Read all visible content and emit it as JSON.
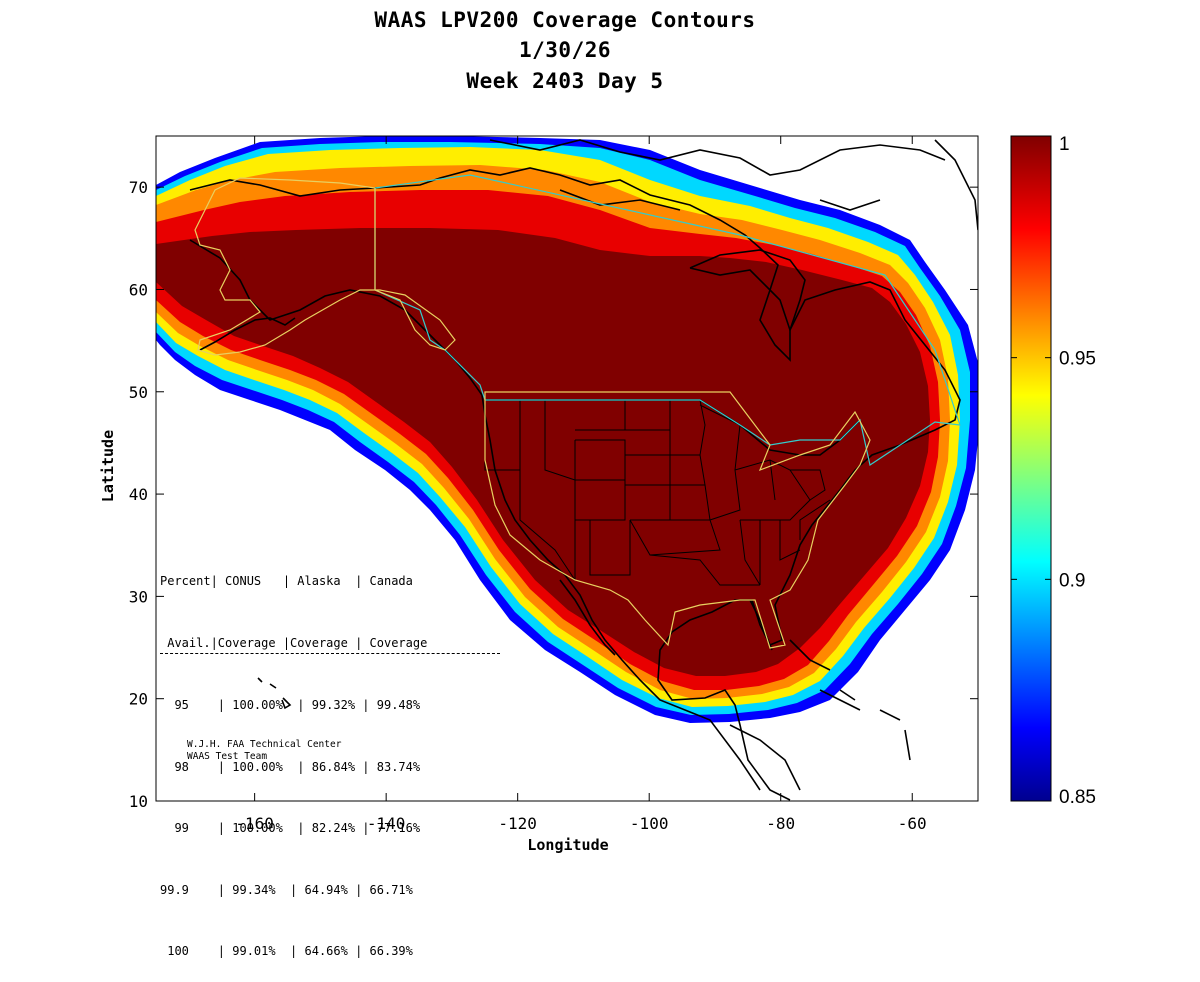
{
  "title": {
    "line1": "WAAS LPV200 Coverage Contours",
    "line2": "1/30/26",
    "line3": "Week 2403 Day 5"
  },
  "map": {
    "xlabel": "Longitude",
    "ylabel": "Latitude",
    "xlim": [
      -175,
      -50
    ],
    "ylim": [
      10,
      75
    ],
    "xticks": [
      "-160",
      "-140",
      "-120",
      "-100",
      "-80",
      "-60"
    ],
    "xtick_values": [
      -160,
      -140,
      -120,
      -100,
      -80,
      -60
    ],
    "yticks": [
      "10",
      "20",
      "30",
      "40",
      "50",
      "60",
      "70"
    ],
    "ytick_values": [
      10,
      20,
      30,
      40,
      50,
      60,
      70
    ],
    "colormap": "jet",
    "colors": {
      "dark_red": "#800000",
      "red": "#e00000",
      "orange": "#ff7f00",
      "yellow": "#ffff00",
      "cyan": "#00ffff",
      "blue": "#0000ff",
      "dark_blue": "#00008f",
      "canada_boundary": "#33cccc",
      "us_boundary": "#e8d060"
    }
  },
  "colorbar": {
    "range": [
      0.85,
      1
    ],
    "labels": [
      "1",
      "0.95",
      "0.9",
      "0.85"
    ],
    "label_values": [
      1,
      0.95,
      0.9,
      0.85
    ]
  },
  "stats_table": {
    "header1": "Percent| CONUS   | Alaska  | Canada",
    "header2": " Avail.|Coverage |Coverage | Coverage",
    "rows": [
      "  95    | 100.00%  | 99.32% | 99.48%",
      "  98    | 100.00%  | 86.84% | 83.74%",
      "  99    | 100.00%  | 82.24% | 77.16%",
      "99.9    | 99.34%  | 64.94% | 66.71%",
      " 100    | 99.01%  | 64.66% | 66.39%"
    ]
  },
  "credit": {
    "line1": "W.J.H. FAA Technical Center",
    "line2": "WAAS Test Team"
  }
}
